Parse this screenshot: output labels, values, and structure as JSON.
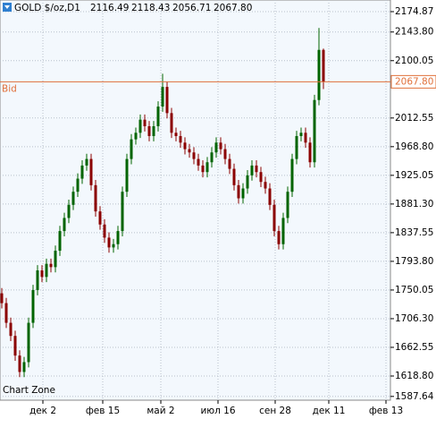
{
  "chart_data": {
    "type": "candlestick",
    "title": "GOLD $/oz,D1",
    "last_labels": [
      "2116.49",
      "2118.43",
      "2056.71",
      "2067.80"
    ],
    "x": [
      0,
      1,
      2,
      3,
      4,
      5,
      6,
      7,
      8,
      9,
      10,
      11,
      12,
      13,
      14,
      15,
      16,
      17,
      18,
      19,
      20,
      21,
      22,
      23,
      24,
      25,
      26,
      27,
      28,
      29,
      30,
      31,
      32,
      33,
      34,
      35,
      36,
      37,
      38,
      39,
      40,
      41,
      42,
      43,
      44,
      45,
      46,
      47,
      48,
      49,
      50,
      51,
      52,
      53,
      54,
      55,
      56,
      57,
      58,
      59,
      60,
      61,
      62,
      63,
      64,
      65,
      66,
      67,
      68,
      69,
      70,
      71,
      72
    ],
    "open": [
      1745,
      1730,
      1700,
      1680,
      1650,
      1625,
      1640,
      1700,
      1750,
      1780,
      1770,
      1790,
      1785,
      1810,
      1840,
      1860,
      1880,
      1900,
      1920,
      1940,
      1950,
      1910,
      1870,
      1850,
      1830,
      1815,
      1820,
      1840,
      1900,
      1950,
      1980,
      1990,
      2010,
      2000,
      1985,
      2000,
      2030,
      2060,
      2020,
      1990,
      1985,
      1975,
      1965,
      1960,
      1950,
      1940,
      1930,
      1945,
      1960,
      1975,
      1965,
      1950,
      1935,
      1910,
      1890,
      1905,
      1925,
      1940,
      1930,
      1915,
      1905,
      1880,
      1840,
      1820,
      1860,
      1900,
      1950,
      1985,
      1990,
      1975,
      1945,
      2040,
      2116.49
    ],
    "high": [
      1753,
      1738,
      1708,
      1688,
      1658,
      1648,
      1708,
      1758,
      1788,
      1788,
      1798,
      1798,
      1818,
      1848,
      1868,
      1888,
      1908,
      1928,
      1948,
      1958,
      1958,
      1918,
      1878,
      1858,
      1838,
      1828,
      1848,
      1908,
      1958,
      1988,
      1998,
      2018,
      2018,
      2008,
      2008,
      2038,
      2080,
      2068,
      2028,
      1998,
      1993,
      1983,
      1973,
      1968,
      1958,
      1948,
      1953,
      1968,
      1983,
      1983,
      1973,
      1958,
      1943,
      1918,
      1913,
      1933,
      1948,
      1948,
      1938,
      1923,
      1913,
      1888,
      1848,
      1868,
      1908,
      1958,
      1993,
      1998,
      1998,
      1983,
      2048,
      2150,
      2118.43
    ],
    "low": [
      1722,
      1692,
      1672,
      1642,
      1617,
      1617,
      1632,
      1692,
      1742,
      1762,
      1762,
      1777,
      1777,
      1802,
      1832,
      1852,
      1872,
      1892,
      1912,
      1932,
      1902,
      1862,
      1842,
      1822,
      1807,
      1807,
      1812,
      1832,
      1892,
      1942,
      1972,
      1982,
      1992,
      1977,
      1977,
      1992,
      2022,
      2012,
      1982,
      1977,
      1967,
      1957,
      1952,
      1942,
      1932,
      1922,
      1922,
      1937,
      1952,
      1957,
      1942,
      1927,
      1902,
      1882,
      1882,
      1897,
      1917,
      1922,
      1907,
      1897,
      1872,
      1832,
      1812,
      1812,
      1852,
      1892,
      1942,
      1977,
      1967,
      1937,
      1937,
      2032,
      2056.71
    ],
    "close": [
      1730,
      1700,
      1680,
      1650,
      1625,
      1640,
      1700,
      1750,
      1780,
      1770,
      1790,
      1785,
      1810,
      1840,
      1860,
      1880,
      1900,
      1920,
      1940,
      1950,
      1910,
      1870,
      1850,
      1830,
      1815,
      1820,
      1840,
      1900,
      1950,
      1980,
      1990,
      2010,
      2000,
      1985,
      2000,
      2030,
      2060,
      2020,
      1990,
      1985,
      1975,
      1965,
      1960,
      1950,
      1940,
      1930,
      1945,
      1960,
      1975,
      1965,
      1950,
      1935,
      1910,
      1890,
      1905,
      1925,
      1940,
      1930,
      1915,
      1905,
      1880,
      1840,
      1820,
      1860,
      1900,
      1950,
      1985,
      1990,
      1975,
      1945,
      2040,
      2116.49,
      2067.8
    ],
    "up_color": "#006400",
    "down_color": "#8b0000",
    "bid": {
      "label": "Bid",
      "value": 2067.8,
      "value_label": "2067.80",
      "color": "#e0703a"
    },
    "annotation": "Chart Zone",
    "xlim": [
      -0.4,
      87
    ],
    "xticks": [
      {
        "value": 9.2,
        "label": "дек 2"
      },
      {
        "value": 22.6,
        "label": "фев 15"
      },
      {
        "value": 35.6,
        "label": "май 2"
      },
      {
        "value": 48.4,
        "label": "июл 16"
      },
      {
        "value": 61.2,
        "label": "сен 28"
      },
      {
        "value": 73.2,
        "label": "дек 11"
      },
      {
        "value": 86,
        "label": "фев 13"
      }
    ],
    "ylim": [
      1581.9,
      2192.63
    ],
    "yticks": [
      2174.87,
      {
        "value": 2143.8,
        "label": "2143.80"
      },
      2100.05,
      2012.55,
      {
        "value": 1968.8,
        "label": "1968.80"
      },
      1925.05,
      {
        "value": 1881.3,
        "label": "1881.30"
      },
      1837.55,
      {
        "value": 1793.8,
        "label": "1793.80"
      },
      1750.05,
      {
        "value": 1706.3,
        "label": "1706.30"
      },
      1662.55,
      {
        "value": 1618.8,
        "label": "1618.80"
      },
      1587.64
    ],
    "grid": true
  }
}
